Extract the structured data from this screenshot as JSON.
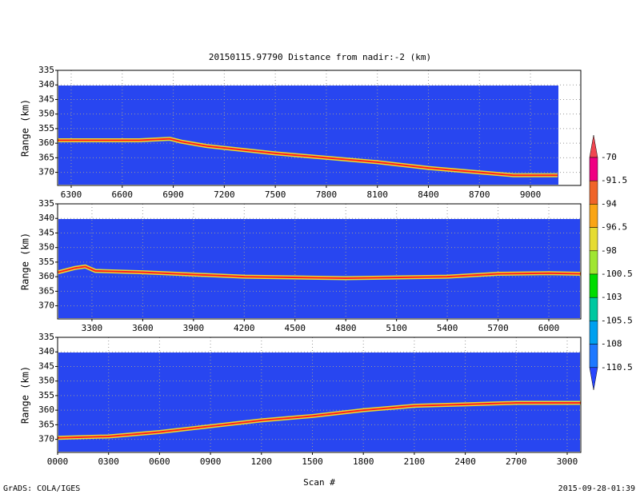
{
  "footer_left": "GrADS: COLA/IGES",
  "footer_right": "2015-09-28-01:39",
  "colorbar": {
    "levels": [
      "-70",
      "-91.5",
      "-94",
      "-96.5",
      "-98",
      "-100.5",
      "-103",
      "-105.5",
      "-108",
      "-110.5"
    ],
    "colors": [
      "#f04650",
      "#f00082",
      "#f06428",
      "#faa514",
      "#e6dc32",
      "#a0e632",
      "#00dc00",
      "#00c8a0",
      "#00a0f0",
      "#1e78ff",
      "#2846ff"
    ]
  },
  "chart_data": [
    {
      "type": "line",
      "title": "20150115.97790    Distance from nadir:-2 (km)",
      "y_label": "Range (km)",
      "x": [
        6220,
        6700,
        6880,
        6950,
        7100,
        7500,
        7800,
        8100,
        8400,
        8700,
        8900,
        9160
      ],
      "values": [
        359,
        359,
        358.5,
        359.5,
        361,
        363.5,
        365,
        366.5,
        368.5,
        370,
        371,
        371
      ],
      "color": "#ff1e1e",
      "xlim": [
        6220,
        9296
      ],
      "xticks": [
        6300,
        6600,
        6900,
        7200,
        7500,
        7800,
        8100,
        8400,
        8700,
        9000
      ],
      "ylim": [
        335,
        374.5
      ],
      "yticks": [
        335,
        340,
        345,
        350,
        355,
        360,
        365,
        370
      ],
      "y_inverted": true,
      "grid": true
    },
    {
      "type": "line",
      "y_label": "Range (km)",
      "x": [
        3100,
        3200,
        3260,
        3320,
        3600,
        4200,
        4800,
        5400,
        5700,
        6000,
        6189
      ],
      "values": [
        358.5,
        357,
        356.5,
        358,
        358.5,
        360,
        360.5,
        360,
        359,
        358.8,
        359
      ],
      "color": "#ff1e1e",
      "xlim": [
        3097,
        6189
      ],
      "xticks": [
        3300,
        3600,
        3900,
        4200,
        4500,
        4800,
        5100,
        5400,
        5700,
        6000
      ],
      "ylim": [
        335,
        374.5
      ],
      "yticks": [
        335,
        340,
        345,
        350,
        355,
        360,
        365,
        370
      ],
      "y_inverted": true,
      "grid": true
    },
    {
      "type": "line",
      "y_label": "Range (km)",
      "x_label": "Scan #",
      "x": [
        0,
        300,
        600,
        900,
        1200,
        1500,
        1800,
        2100,
        2400,
        2700,
        3080
      ],
      "values": [
        369.5,
        369,
        367.5,
        365.5,
        363.5,
        362,
        360,
        358.5,
        358,
        357.5,
        357.5
      ],
      "color": "#ff1e1e",
      "xlim": [
        0,
        3080
      ],
      "xticks": [
        {
          "value": 0,
          "label": "0000"
        },
        {
          "value": 300,
          "label": "0300"
        },
        {
          "value": 600,
          "label": "0600"
        },
        {
          "value": 900,
          "label": "0900"
        },
        1200,
        1500,
        1800,
        2100,
        2400,
        2700,
        3000
      ],
      "ylim": [
        335,
        374.5
      ],
      "yticks": [
        335,
        340,
        345,
        350,
        355,
        360,
        365,
        370
      ],
      "y_inverted": true,
      "grid": true
    }
  ]
}
